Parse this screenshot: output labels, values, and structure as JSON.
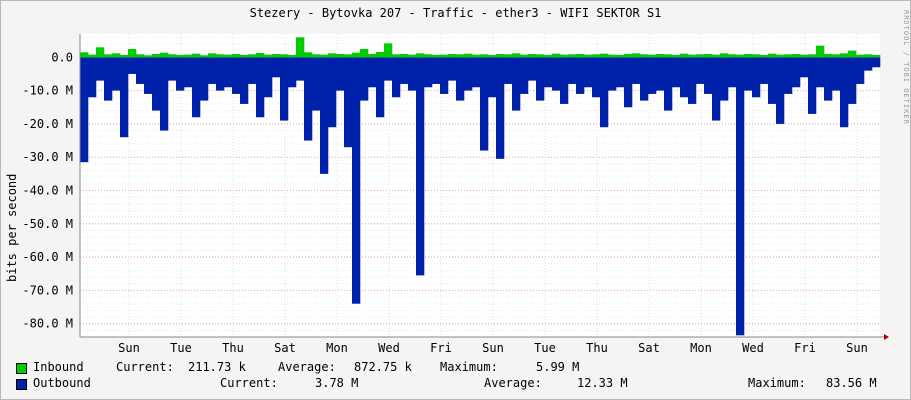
{
  "chart_data": {
    "type": "area",
    "title": "Stezery - Bytovka 207 - Traffic - ether3 - WIFI SEKTOR S1",
    "ylabel": "bits per second",
    "watermark": "RRDTOOL / TOBI OETIKER",
    "ylim": [
      -84000000,
      7000000
    ],
    "y_ticks": [
      {
        "value": 0,
        "label": "0.0"
      },
      {
        "value": -10000000,
        "label": "-10.0 M"
      },
      {
        "value": -20000000,
        "label": "-20.0 M"
      },
      {
        "value": -30000000,
        "label": "-30.0 M"
      },
      {
        "value": -40000000,
        "label": "-40.0 M"
      },
      {
        "value": -50000000,
        "label": "-50.0 M"
      },
      {
        "value": -60000000,
        "label": "-60.0 M"
      },
      {
        "value": -70000000,
        "label": "-70.0 M"
      },
      {
        "value": -80000000,
        "label": "-80.0 M"
      }
    ],
    "x_ticks": [
      "Sun",
      "Tue",
      "Thu",
      "Sat",
      "Mon",
      "Wed",
      "Fri",
      "Sun",
      "Tue",
      "Thu",
      "Sat",
      "Mon",
      "Wed",
      "Fri",
      "Sun"
    ],
    "grid": true,
    "legend_position": "bottom",
    "series": [
      {
        "name": "Inbound",
        "color": "#00cc00",
        "values": [
          1.5,
          0.8,
          3.0,
          0.9,
          1.2,
          0.7,
          2.5,
          0.9,
          0.6,
          1.0,
          1.4,
          0.9,
          0.7,
          0.8,
          1.1,
          0.6,
          1.2,
          0.9,
          0.8,
          1.0,
          0.7,
          0.9,
          1.3,
          0.8,
          1.0,
          0.9,
          0.7,
          6.0,
          1.5,
          0.9,
          0.8,
          1.2,
          1.0,
          0.9,
          1.4,
          2.5,
          1.0,
          1.6,
          4.2,
          0.9,
          1.0,
          0.8,
          1.2,
          0.9,
          0.7,
          0.8,
          1.0,
          0.9,
          1.1,
          0.8,
          0.9,
          0.7,
          1.0,
          0.9,
          1.2,
          0.8,
          1.0,
          0.9,
          0.7,
          1.1,
          0.8,
          0.9,
          1.0,
          0.8,
          0.9,
          1.1,
          0.8,
          0.7,
          1.0,
          1.2,
          0.9,
          0.8,
          1.0,
          0.9,
          0.7,
          1.1,
          0.8,
          0.9,
          1.0,
          0.8,
          1.2,
          0.9,
          0.8,
          1.0,
          0.9,
          0.7,
          1.1,
          0.8,
          0.9,
          1.0,
          0.8,
          0.9,
          3.5,
          1.0,
          0.9,
          1.2,
          2.0,
          0.8,
          0.9,
          0.7
        ],
        "x_range_note": ""
      },
      {
        "name": "Outbound",
        "color": "#0022aa",
        "values": [
          -31.5,
          -12,
          -7,
          -13,
          -10,
          -24,
          -5,
          -8,
          -11,
          -16,
          -22,
          -7,
          -10,
          -9,
          -18,
          -13,
          -8,
          -10,
          -9,
          -11,
          -14,
          -8,
          -18,
          -12,
          -6,
          -19,
          -9,
          -7,
          -25,
          -16,
          -35,
          -21,
          -10,
          -27,
          -74,
          -13,
          -9,
          -18,
          -7,
          -12,
          -8,
          -10,
          -65.5,
          -9,
          -8,
          -11,
          -7,
          -13,
          -10,
          -9,
          -28,
          -12,
          -30.5,
          -8,
          -16,
          -11,
          -7,
          -13,
          -9,
          -10,
          -14,
          -8,
          -11,
          -9,
          -12,
          -21,
          -10,
          -9,
          -15,
          -8,
          -13,
          -11,
          -10,
          -16,
          -9,
          -12,
          -14,
          -8,
          -11,
          -19,
          -13,
          -9,
          -83.5,
          -10,
          -12,
          -8,
          -14,
          -20,
          -11,
          -9,
          -6,
          -17,
          -9,
          -13,
          -10,
          -21,
          -14,
          -8,
          -4,
          -3
        ]
      }
    ]
  },
  "legend": {
    "inbound": {
      "name": "Inbound",
      "current_label": "Current:",
      "current": "211.73 k",
      "average_label": "Average:",
      "average": "872.75 k",
      "maximum_label": "Maximum:",
      "maximum": "5.99 M"
    },
    "outbound": {
      "name": "Outbound",
      "current_label": "Current:",
      "current": "3.78 M",
      "average_label": "Average:",
      "average": "12.33 M",
      "maximum_label": "Maximum:",
      "maximum": "83.56 M"
    }
  }
}
